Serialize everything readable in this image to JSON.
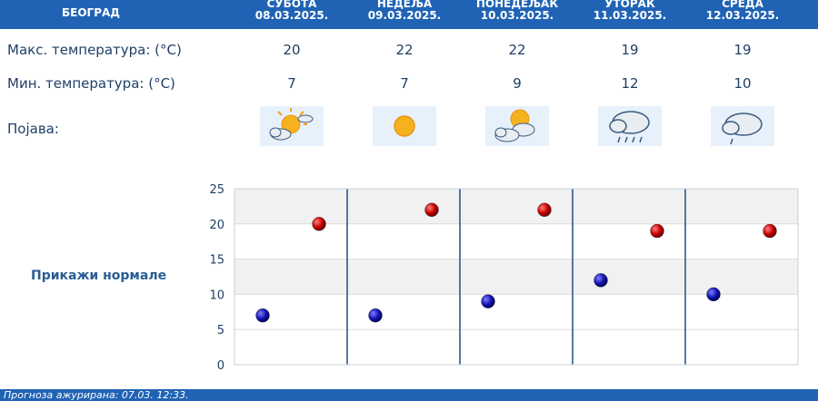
{
  "header": {
    "city": "БЕОГРАД",
    "days": [
      {
        "name": "СУБОТА",
        "date": "08.03.2025."
      },
      {
        "name": "НЕДЕЉА",
        "date": "09.03.2025."
      },
      {
        "name": "ПОНЕДЕЉАК",
        "date": "10.03.2025."
      },
      {
        "name": "УТОРАК",
        "date": "11.03.2025."
      },
      {
        "name": "СРЕДА",
        "date": "12.03.2025."
      }
    ]
  },
  "rows": {
    "max_label": "Макс. температура: (°C)",
    "min_label": "Мин. температура: (°C)",
    "phenomenon_label": "Појава:",
    "max": [
      "20",
      "22",
      "22",
      "19",
      "19"
    ],
    "min": [
      "7",
      "7",
      "9",
      "12",
      "10"
    ],
    "icons": [
      "partly-cloudy-sun-icon",
      "sun-icon",
      "partly-cloudy-sun-icon",
      "rain-cloud-icon",
      "drizzle-cloud-icon"
    ]
  },
  "normals_link": "Прикажи нормале",
  "footer": "Прогноза ажурирана: 07.03. 12:33.",
  "colors": {
    "header": "#2063b5",
    "max_point": "#c80000",
    "min_point": "#1414b4",
    "divider": "#1f4f86"
  },
  "chart_data": {
    "type": "scatter",
    "categories": [
      "СУБОТА",
      "НЕДЕЉА",
      "ПОНЕДЕЉАК",
      "УТОРАК",
      "СРЕДА"
    ],
    "series": [
      {
        "values": [
          20,
          22,
          22,
          19,
          19
        ]
      },
      {
        "values": [
          7,
          7,
          9,
          12,
          10
        ]
      }
    ],
    "ylim": [
      0,
      25
    ],
    "yticks": [
      "0",
      "5",
      "10",
      "15",
      "20",
      "25"
    ],
    "grid": true
  }
}
